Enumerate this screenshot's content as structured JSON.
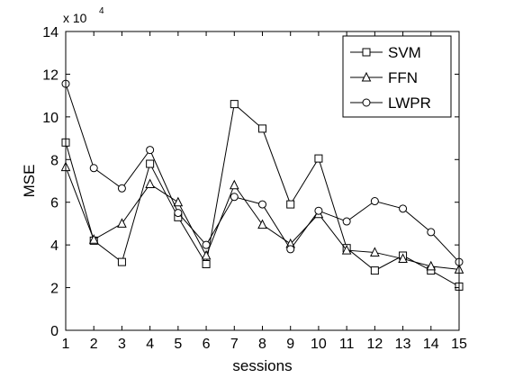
{
  "chart_data": {
    "type": "line",
    "xlabel": "sessions",
    "ylabel": "MSE",
    "scale_label": "x 10",
    "scale_exponent": "4",
    "x": [
      1,
      2,
      3,
      4,
      5,
      6,
      7,
      8,
      9,
      10,
      11,
      12,
      13,
      14,
      15
    ],
    "xlim": [
      1,
      15
    ],
    "ylim": [
      0,
      14
    ],
    "yticks": [
      0,
      2,
      4,
      6,
      8,
      10,
      12,
      14
    ],
    "grid": false,
    "legend_position": "top-right",
    "series": [
      {
        "name": "SVM",
        "marker": "square",
        "values": [
          8.8,
          4.2,
          3.2,
          7.8,
          5.3,
          3.1,
          10.6,
          9.45,
          5.9,
          8.05,
          3.85,
          2.8,
          3.5,
          2.8,
          2.05
        ]
      },
      {
        "name": "FFN",
        "marker": "triangle",
        "values": [
          7.65,
          4.25,
          5.0,
          6.85,
          6.0,
          3.5,
          6.8,
          4.95,
          4.05,
          5.45,
          3.75,
          3.65,
          3.35,
          3.0,
          2.85
        ]
      },
      {
        "name": "LWPR",
        "marker": "circle",
        "values": [
          11.55,
          7.6,
          6.65,
          8.45,
          5.5,
          4.0,
          6.25,
          5.9,
          3.8,
          5.6,
          5.1,
          6.05,
          5.7,
          4.6,
          3.2
        ]
      }
    ]
  }
}
